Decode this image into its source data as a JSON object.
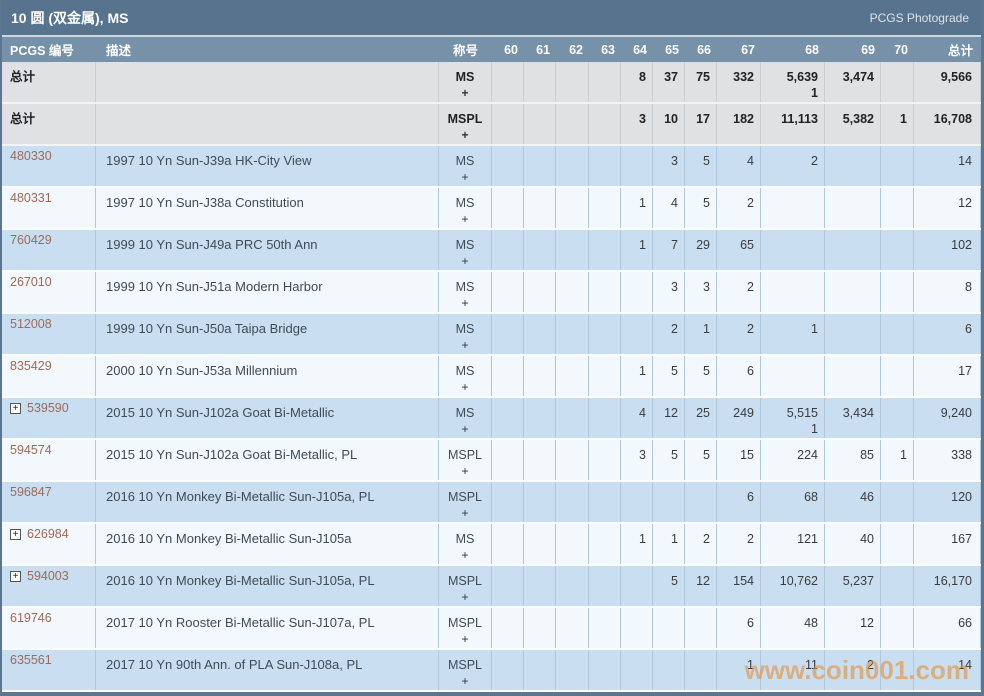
{
  "title_bar": {
    "title": "10 圆 (双金属), MS",
    "photograde_link": "PCGS Photograde"
  },
  "columns": {
    "pcgs_no": "PCGS 编号",
    "description": "描述",
    "designation": "称号",
    "grades": [
      "60",
      "61",
      "62",
      "63",
      "64",
      "65",
      "66",
      "67",
      "68",
      "69",
      "70"
    ],
    "total": "总计"
  },
  "totals_rows": [
    {
      "label": "总计",
      "designation": "MS",
      "designation_plus": "+",
      "values": [
        "",
        "",
        "",
        "",
        "8",
        "37",
        "75",
        "332",
        "5,639",
        "3,474",
        ""
      ],
      "plus_values": [
        "",
        "",
        "",
        "",
        "",
        "",
        "",
        "",
        "1",
        "",
        ""
      ],
      "total": "9,566",
      "total_plus": ""
    },
    {
      "label": "总计",
      "designation": "MSPL",
      "designation_plus": "+",
      "values": [
        "",
        "",
        "",
        "",
        "3",
        "10",
        "17",
        "182",
        "11,113",
        "5,382",
        "1"
      ],
      "plus_values": [
        "",
        "",
        "",
        "",
        "",
        "",
        "",
        "",
        "",
        "",
        ""
      ],
      "total": "16,708",
      "total_plus": ""
    }
  ],
  "rows": [
    {
      "pcgs_no": "480330",
      "expandable": false,
      "description": "1997 10 Yn Sun-J39a HK-City View",
      "designation": "MS",
      "designation_plus": "+",
      "values": [
        "",
        "",
        "",
        "",
        "",
        "3",
        "5",
        "4",
        "2",
        "",
        ""
      ],
      "plus_values": [
        "",
        "",
        "",
        "",
        "",
        "",
        "",
        "",
        "",
        "",
        ""
      ],
      "total": "14",
      "total_plus": ""
    },
    {
      "pcgs_no": "480331",
      "expandable": false,
      "description": "1997 10 Yn Sun-J38a Constitution",
      "designation": "MS",
      "designation_plus": "+",
      "values": [
        "",
        "",
        "",
        "",
        "1",
        "4",
        "5",
        "2",
        "",
        "",
        ""
      ],
      "plus_values": [
        "",
        "",
        "",
        "",
        "",
        "",
        "",
        "",
        "",
        "",
        ""
      ],
      "total": "12",
      "total_plus": ""
    },
    {
      "pcgs_no": "760429",
      "expandable": false,
      "description": "1999 10 Yn Sun-J49a PRC 50th Ann",
      "designation": "MS",
      "designation_plus": "+",
      "values": [
        "",
        "",
        "",
        "",
        "1",
        "7",
        "29",
        "65",
        "",
        "",
        ""
      ],
      "plus_values": [
        "",
        "",
        "",
        "",
        "",
        "",
        "",
        "",
        "",
        "",
        ""
      ],
      "total": "102",
      "total_plus": ""
    },
    {
      "pcgs_no": "267010",
      "expandable": false,
      "description": "1999 10 Yn Sun-J51a Modern Harbor",
      "designation": "MS",
      "designation_plus": "+",
      "values": [
        "",
        "",
        "",
        "",
        "",
        "3",
        "3",
        "2",
        "",
        "",
        ""
      ],
      "plus_values": [
        "",
        "",
        "",
        "",
        "",
        "",
        "",
        "",
        "",
        "",
        ""
      ],
      "total": "8",
      "total_plus": ""
    },
    {
      "pcgs_no": "512008",
      "expandable": false,
      "description": "1999 10 Yn Sun-J50a Taipa Bridge",
      "designation": "MS",
      "designation_plus": "+",
      "values": [
        "",
        "",
        "",
        "",
        "",
        "2",
        "1",
        "2",
        "1",
        "",
        ""
      ],
      "plus_values": [
        "",
        "",
        "",
        "",
        "",
        "",
        "",
        "",
        "",
        "",
        ""
      ],
      "total": "6",
      "total_plus": ""
    },
    {
      "pcgs_no": "835429",
      "expandable": false,
      "description": "2000 10 Yn Sun-J53a Millennium",
      "designation": "MS",
      "designation_plus": "+",
      "values": [
        "",
        "",
        "",
        "",
        "1",
        "5",
        "5",
        "6",
        "",
        "",
        ""
      ],
      "plus_values": [
        "",
        "",
        "",
        "",
        "",
        "",
        "",
        "",
        "",
        "",
        ""
      ],
      "total": "17",
      "total_plus": ""
    },
    {
      "pcgs_no": "539590",
      "expandable": true,
      "description": "2015 10 Yn Sun-J102a Goat Bi-Metallic",
      "designation": "MS",
      "designation_plus": "+",
      "values": [
        "",
        "",
        "",
        "",
        "4",
        "12",
        "25",
        "249",
        "5,515",
        "3,434",
        ""
      ],
      "plus_values": [
        "",
        "",
        "",
        "",
        "",
        "",
        "",
        "",
        "1",
        "",
        ""
      ],
      "total": "9,240",
      "total_plus": ""
    },
    {
      "pcgs_no": "594574",
      "expandable": false,
      "description": "2015 10 Yn Sun-J102a Goat Bi-Metallic, PL",
      "designation": "MSPL",
      "designation_plus": "+",
      "values": [
        "",
        "",
        "",
        "",
        "3",
        "5",
        "5",
        "15",
        "224",
        "85",
        "1"
      ],
      "plus_values": [
        "",
        "",
        "",
        "",
        "",
        "",
        "",
        "",
        "",
        "",
        ""
      ],
      "total": "338",
      "total_plus": ""
    },
    {
      "pcgs_no": "596847",
      "expandable": false,
      "description": "2016 10 Yn Monkey Bi-Metallic Sun-J105a, PL",
      "designation": "MSPL",
      "designation_plus": "+",
      "values": [
        "",
        "",
        "",
        "",
        "",
        "",
        "",
        "6",
        "68",
        "46",
        ""
      ],
      "plus_values": [
        "",
        "",
        "",
        "",
        "",
        "",
        "",
        "",
        "",
        "",
        ""
      ],
      "total": "120",
      "total_plus": ""
    },
    {
      "pcgs_no": "626984",
      "expandable": true,
      "description": "2016 10 Yn Monkey Bi-Metallic Sun-J105a",
      "designation": "MS",
      "designation_plus": "+",
      "values": [
        "",
        "",
        "",
        "",
        "1",
        "1",
        "2",
        "2",
        "121",
        "40",
        ""
      ],
      "plus_values": [
        "",
        "",
        "",
        "",
        "",
        "",
        "",
        "",
        "",
        "",
        ""
      ],
      "total": "167",
      "total_plus": ""
    },
    {
      "pcgs_no": "594003",
      "expandable": true,
      "description": "2016 10 Yn Monkey Bi-Metallic Sun-J105a, PL",
      "designation": "MSPL",
      "designation_plus": "+",
      "values": [
        "",
        "",
        "",
        "",
        "",
        "5",
        "12",
        "154",
        "10,762",
        "5,237",
        ""
      ],
      "plus_values": [
        "",
        "",
        "",
        "",
        "",
        "",
        "",
        "",
        "",
        "",
        ""
      ],
      "total": "16,170",
      "total_plus": ""
    },
    {
      "pcgs_no": "619746",
      "expandable": false,
      "description": "2017 10 Yn Rooster Bi-Metallic Sun-J107a, PL",
      "designation": "MSPL",
      "designation_plus": "+",
      "values": [
        "",
        "",
        "",
        "",
        "",
        "",
        "",
        "6",
        "48",
        "12",
        ""
      ],
      "plus_values": [
        "",
        "",
        "",
        "",
        "",
        "",
        "",
        "",
        "",
        "",
        ""
      ],
      "total": "66",
      "total_plus": ""
    },
    {
      "pcgs_no": "635561",
      "expandable": false,
      "description": "2017 10 Yn 90th Ann. of PLA Sun-J108a, PL",
      "designation": "MSPL",
      "designation_plus": "+",
      "values": [
        "",
        "",
        "",
        "",
        "",
        "",
        "",
        "1",
        "11",
        "2",
        ""
      ],
      "plus_values": [
        "",
        "",
        "",
        "",
        "",
        "",
        "",
        "",
        "",
        "",
        ""
      ],
      "total": "14",
      "total_plus": ""
    }
  ],
  "watermark": "www.coin001.com",
  "colors": {
    "title_bar_bg": "#58738d",
    "header_bg": "#7791a9",
    "row_blue": "#c9def0",
    "row_white": "#f3f8fc",
    "totals_row_bg": "#e0e1e2",
    "pcgs_link": "#9c6a5a",
    "watermark": "#e7923c"
  }
}
